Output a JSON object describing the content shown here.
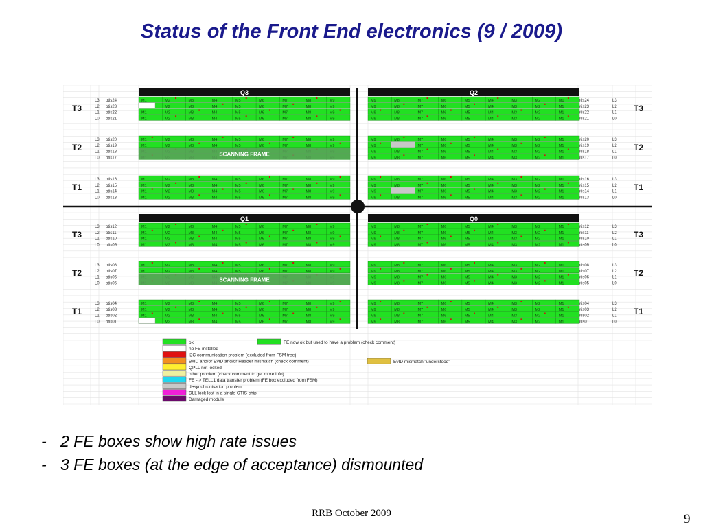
{
  "slide": {
    "title": "Status of the Front End electronics (9 / 2009)",
    "bullets": [
      "2 FE boxes show high rate issues",
      "3 FE boxes (at the edge of acceptance) dismounted"
    ],
    "footer": "RRB October 2009",
    "page_number": "9"
  },
  "figure": {
    "quadrants": {
      "top_left": "Q3",
      "top_right": "Q2",
      "bottom_left": "Q1",
      "bottom_right": "Q0"
    },
    "stations_top": [
      "T3",
      "T2",
      "T1"
    ],
    "stations_bottom": [
      "T3",
      "T2",
      "T1"
    ],
    "layers": [
      "L3",
      "L2",
      "L1",
      "L0"
    ],
    "left_boxes": [
      "M1",
      "M2",
      "M3",
      "M4",
      "M5",
      "M6",
      "M7",
      "M8",
      "M9"
    ],
    "right_boxes": [
      "M9",
      "M8",
      "M7",
      "M6",
      "M5",
      "M4",
      "M3",
      "M2",
      "M1"
    ],
    "scanning_frame": "SCANNING FRAME",
    "otis_top": [
      [
        "otis24",
        "otis23",
        "otis22",
        "otis21"
      ],
      [
        "otis20",
        "otis19",
        "otis18",
        "otis17"
      ],
      [
        "otis16",
        "otis15",
        "otis14",
        "otis13"
      ]
    ],
    "otis_bottom": [
      [
        "otis12",
        "otis11",
        "otis10",
        "otis09"
      ],
      [
        "otis08",
        "otis07",
        "otis06",
        "otis05"
      ],
      [
        "otis04",
        "otis03",
        "otis02",
        "otis01"
      ]
    ],
    "legend": [
      {
        "label": "ok",
        "color": "#22e022"
      },
      {
        "label": "no FE installed",
        "color": "#ffffff"
      },
      {
        "label": "I2C communication problem (excluded from FSM tree)",
        "color": "#e01010"
      },
      {
        "label": "BxID and/or EvID and/or Header mismatch (check comment)",
        "color": "#f29020"
      },
      {
        "label": "QPLL not locked",
        "color": "#ffee30"
      },
      {
        "label": "other problem (check comment to get more info)",
        "color": "#f0f0a0"
      },
      {
        "label": "FE --> TELL1 data transfer problem (FE box excluded from FSM)",
        "color": "#20d8f0"
      },
      {
        "label": "desynchronisation problem",
        "color": "#c8c8c8"
      },
      {
        "label": "DLL lock lost in a single OTIS chip",
        "color": "#f020d8"
      },
      {
        "label": "Damaged module",
        "color": "#6a0a6a"
      }
    ],
    "legend_extra": [
      {
        "label": "FE now ok but used to have a problem (check comment)",
        "color": "#22e022"
      },
      {
        "label": "EvID mismatch \"understood\"",
        "color": "#e0c040"
      }
    ],
    "colors": {
      "ok": "#22e022",
      "scan": "#5aa05a",
      "header": "#111111",
      "red_mark": "#d01010"
    }
  }
}
